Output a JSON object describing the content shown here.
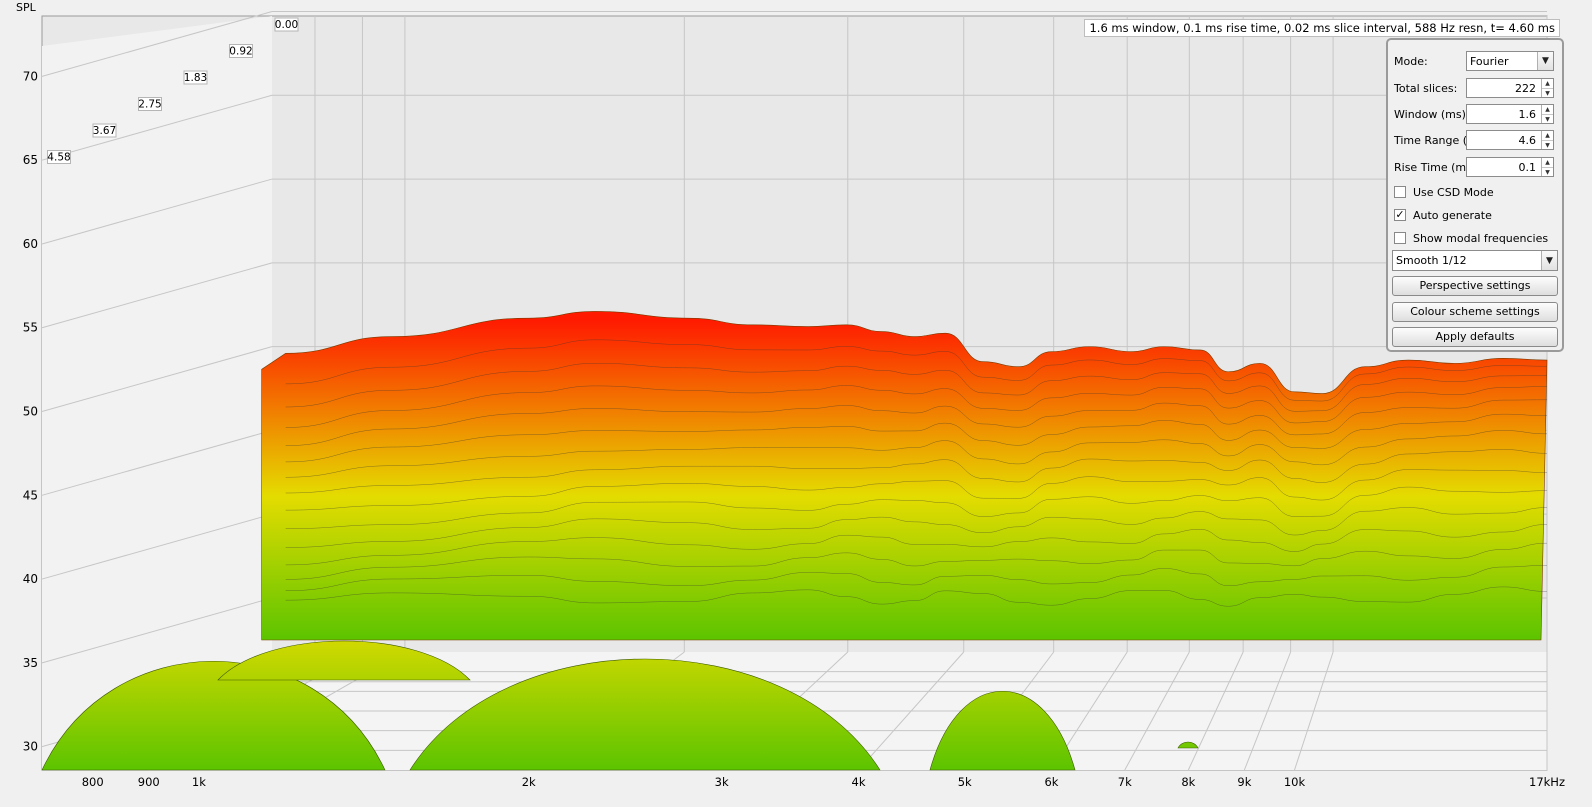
{
  "header": {
    "y_axis_title": "SPL",
    "info": "1.6 ms window, 0.1 ms rise time, 0.02 ms slice interval, 588 Hz resn, t= 4.60 ms"
  },
  "controls": {
    "mode_label": "Mode:",
    "mode_value": "Fourier",
    "total_slices_label": "Total slices:",
    "total_slices_value": "222",
    "window_label": "Window (ms):",
    "window_value": "1.6",
    "time_range_label": "Time Range (ms):",
    "time_range_value": "4.6",
    "rise_time_label": "Rise Time (ms):",
    "rise_time_value": "0.1",
    "use_csd_label": "Use CSD Mode",
    "use_csd_checked": false,
    "auto_generate_label": "Auto generate",
    "auto_generate_checked": true,
    "show_modal_label": "Show modal frequencies",
    "show_modal_checked": false,
    "smoothing_value": "Smooth 1/12",
    "perspective_button": "Perspective settings",
    "colour_button": "Colour scheme settings",
    "apply_defaults_button": "Apply defaults"
  },
  "colors": {
    "background": "#e8e8e8",
    "floor": "#f4f4f4",
    "grid": "#c6c6c6",
    "hot": "#ff1a00",
    "mid": "#e4dc00",
    "cool": "#5cc400"
  },
  "chart_data": {
    "type": "waterfall",
    "y_axis": {
      "label": "SPL",
      "ticks": [
        "70",
        "65",
        "60",
        "55",
        "50",
        "45",
        "40",
        "35",
        "30"
      ],
      "range": [
        27,
        72
      ]
    },
    "x_axis": {
      "scale": "log",
      "unit": "kHz",
      "range_hz": [
        750,
        17000
      ],
      "tick_labels": [
        "800",
        "900",
        "1k",
        "2k",
        "3k",
        "4k",
        "5k",
        "6k",
        "7k",
        "8k",
        "9k",
        "10k",
        "17kHz"
      ],
      "tick_values_hz": [
        800,
        900,
        1000,
        2000,
        3000,
        4000,
        5000,
        6000,
        7000,
        8000,
        9000,
        10000,
        17000
      ]
    },
    "time_axis": {
      "unit": "ms",
      "tick_labels": [
        "0.00",
        "0.92",
        "1.83",
        "2.75",
        "3.67",
        "4.58"
      ]
    },
    "first_slice": {
      "t_ms": 0.0,
      "freq_hz": [
        1200,
        1500,
        2000,
        2300,
        2800,
        3200,
        3600,
        3900,
        4200,
        4500,
        4800,
        5200,
        5600,
        6000,
        6500,
        7100,
        7600,
        8200,
        8700,
        9300,
        10000,
        10600,
        11600,
        12700,
        14000,
        15500,
        17000
      ],
      "spl_db": [
        49.6,
        50.6,
        51.7,
        52.1,
        51.7,
        51.3,
        51.2,
        51.3,
        50.9,
        50.6,
        50.8,
        49.1,
        48.8,
        49.7,
        50.0,
        49.7,
        50.0,
        49.8,
        48.5,
        49.0,
        47.3,
        47.2,
        48.8,
        49.2,
        49.0,
        49.3,
        49.2
      ]
    }
  }
}
